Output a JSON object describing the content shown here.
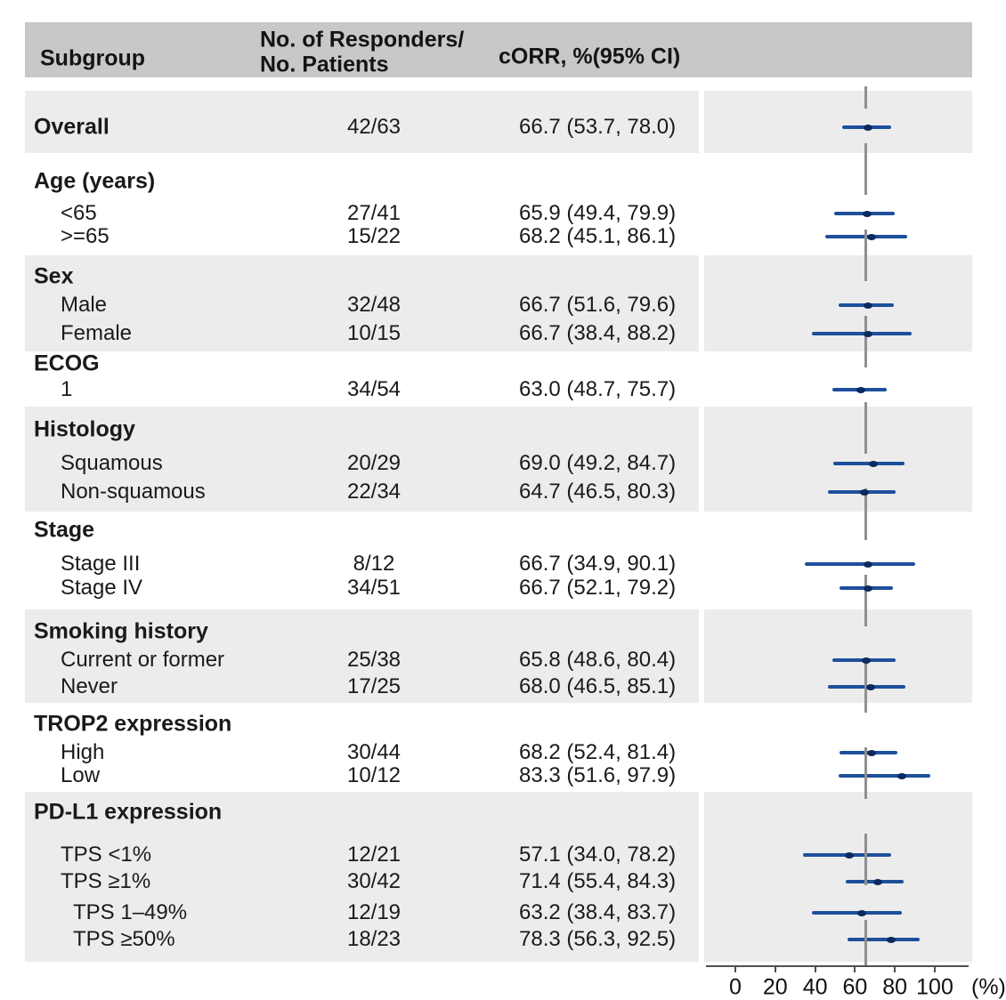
{
  "header": {
    "col_subgroup": "Subgroup",
    "col_n_line1": "No. of Responders/",
    "col_n_line2": "No. Patients",
    "col_corr": "cORR, %(95% CI)"
  },
  "axis": {
    "ticks": [
      0,
      20,
      40,
      60,
      80,
      100
    ],
    "unit_label": "(%)",
    "range": [
      0,
      100
    ],
    "reference_value": 66.7
  },
  "chart_data": {
    "type": "forest",
    "title": "",
    "x_axis_label": "(%)",
    "xlim": [
      0,
      100
    ],
    "reference_line": 66.7,
    "sections": [
      {
        "label": null,
        "rows": [
          {
            "label": "Overall",
            "bold": true,
            "indent": 0,
            "n": "42/63",
            "corr": "66.7 (53.7, 78.0)",
            "est": 66.7,
            "lo": 53.7,
            "hi": 78.0
          }
        ]
      },
      {
        "label": "Age (years)",
        "rows": [
          {
            "label": "<65",
            "indent": 1,
            "n": "27/41",
            "corr": "65.9 (49.4, 79.9)",
            "est": 65.9,
            "lo": 49.4,
            "hi": 79.9
          },
          {
            "label": ">=65",
            "indent": 1,
            "n": "15/22",
            "corr": "68.2 (45.1, 86.1)",
            "est": 68.2,
            "lo": 45.1,
            "hi": 86.1
          }
        ]
      },
      {
        "label": "Sex",
        "rows": [
          {
            "label": "Male",
            "indent": 1,
            "n": "32/48",
            "corr": "66.7 (51.6, 79.6)",
            "est": 66.7,
            "lo": 51.6,
            "hi": 79.6
          },
          {
            "label": "Female",
            "indent": 1,
            "n": "10/15",
            "corr": "66.7 (38.4, 88.2)",
            "est": 66.7,
            "lo": 38.4,
            "hi": 88.2
          }
        ]
      },
      {
        "label": "ECOG",
        "rows": [
          {
            "label": "1",
            "indent": 1,
            "n": "34/54",
            "corr": "63.0 (48.7, 75.7)",
            "est": 63.0,
            "lo": 48.7,
            "hi": 75.7
          }
        ]
      },
      {
        "label": "Histology",
        "rows": [
          {
            "label": "Squamous",
            "indent": 1,
            "n": "20/29",
            "corr": "69.0 (49.2, 84.7)",
            "est": 69.0,
            "lo": 49.2,
            "hi": 84.7
          },
          {
            "label": "Non-squamous",
            "indent": 1,
            "n": "22/34",
            "corr": "64.7 (46.5, 80.3)",
            "est": 64.7,
            "lo": 46.5,
            "hi": 80.3
          }
        ]
      },
      {
        "label": "Stage",
        "rows": [
          {
            "label": "Stage III",
            "indent": 1,
            "n": "8/12",
            "corr": "66.7 (34.9, 90.1)",
            "est": 66.7,
            "lo": 34.9,
            "hi": 90.1
          },
          {
            "label": "Stage IV",
            "indent": 1,
            "n": "34/51",
            "corr": "66.7 (52.1, 79.2)",
            "est": 66.7,
            "lo": 52.1,
            "hi": 79.2
          }
        ]
      },
      {
        "label": "Smoking history",
        "rows": [
          {
            "label": "Current or former",
            "indent": 1,
            "n": "25/38",
            "corr": "65.8 (48.6, 80.4)",
            "est": 65.8,
            "lo": 48.6,
            "hi": 80.4
          },
          {
            "label": "Never",
            "indent": 1,
            "n": "17/25",
            "corr": "68.0 (46.5, 85.1)",
            "est": 68.0,
            "lo": 46.5,
            "hi": 85.1
          }
        ]
      },
      {
        "label": "TROP2 expression",
        "rows": [
          {
            "label": "High",
            "indent": 1,
            "n": "30/44",
            "corr": "68.2 (52.4, 81.4)",
            "est": 68.2,
            "lo": 52.4,
            "hi": 81.4
          },
          {
            "label": "Low",
            "indent": 1,
            "n": "10/12",
            "corr": "83.3 (51.6, 97.9)",
            "est": 83.3,
            "lo": 51.6,
            "hi": 97.9
          }
        ]
      },
      {
        "label": "PD-L1 expression",
        "rows": [
          {
            "label": "TPS <1%",
            "indent": 1,
            "n": "12/21",
            "corr": "57.1 (34.0, 78.2)",
            "est": 57.1,
            "lo": 34.0,
            "hi": 78.2
          },
          {
            "label": "TPS ≥1%",
            "indent": 1,
            "n": "30/42",
            "corr": "71.4 (55.4, 84.3)",
            "est": 71.4,
            "lo": 55.4,
            "hi": 84.3
          },
          {
            "label": "TPS 1–49%",
            "indent": 2,
            "n": "12/19",
            "corr": "63.2 (38.4, 83.7)",
            "est": 63.2,
            "lo": 38.4,
            "hi": 83.7
          },
          {
            "label": "TPS ≥50%",
            "indent": 2,
            "n": "18/23",
            "corr": "78.3 (56.3, 92.5)",
            "est": 78.3,
            "lo": 56.3,
            "hi": 92.5
          }
        ]
      }
    ],
    "colors": {
      "ci_line": "#1d4f9c",
      "point_marker": "#0b2a5f",
      "reference_line": "#8f8f8f",
      "header_band": "#c8c8c8",
      "row_stripe": "#ececec",
      "axis": "#4f4f4f"
    }
  }
}
